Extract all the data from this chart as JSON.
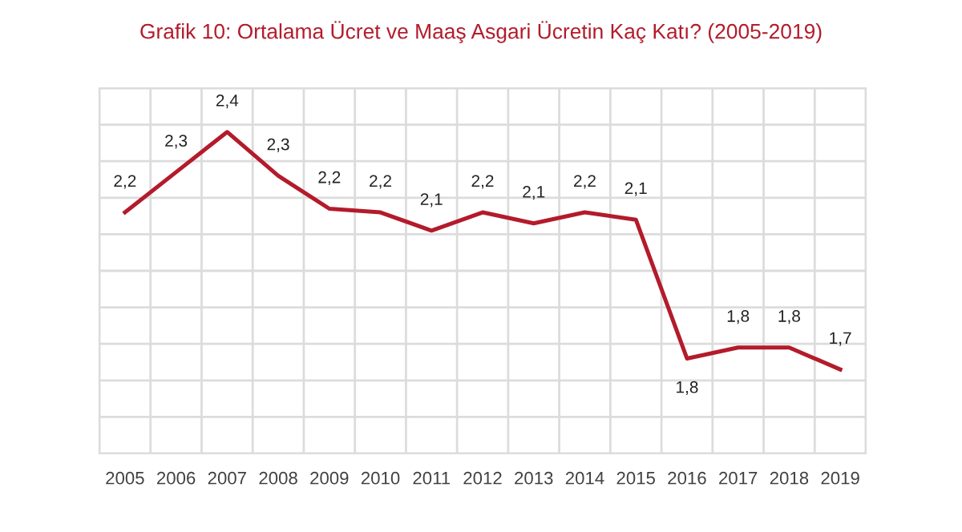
{
  "chart_data": {
    "type": "line",
    "title": "Grafik 10: Ortalama Ücret ve Maaş Asgari Ücretin Kaç Katı? (2005-2019)",
    "categories": [
      "2005",
      "2006",
      "2007",
      "2008",
      "2009",
      "2010",
      "2011",
      "2012",
      "2013",
      "2014",
      "2015",
      "2016",
      "2017",
      "2018",
      "2019"
    ],
    "series": [
      {
        "color": "#b31b2b",
        "values": [
          2.16,
          2.27,
          2.38,
          2.26,
          2.17,
          2.16,
          2.11,
          2.16,
          2.13,
          2.16,
          2.14,
          1.76,
          1.79,
          1.79,
          1.73
        ],
        "value_labels": [
          "2,2",
          "2,3",
          "2,4",
          "2,3",
          "2,2",
          "2,2",
          "2,1",
          "2,2",
          "2,1",
          "2,2",
          "2,1",
          "1,8",
          "1,8",
          "1,8",
          "1,7"
        ]
      }
    ],
    "ylim": [
      1.5,
      2.5
    ],
    "yticks": [
      {
        "value": 1.5,
        "label": null
      },
      {
        "value": 1.6,
        "label": null
      },
      {
        "value": 1.7,
        "label": null
      },
      {
        "value": 1.8,
        "label": null
      },
      {
        "value": 1.9,
        "label": null
      },
      {
        "value": 2.0,
        "label": null
      },
      {
        "value": 2.1,
        "label": null
      },
      {
        "value": 2.2,
        "label": null
      },
      {
        "value": 2.3,
        "label": null
      },
      {
        "value": 2.4,
        "label": null
      },
      {
        "value": 2.5,
        "label": null
      }
    ],
    "tick_labels": "x",
    "grid": true,
    "legend": false,
    "marker": "none",
    "line_style": "solid"
  }
}
